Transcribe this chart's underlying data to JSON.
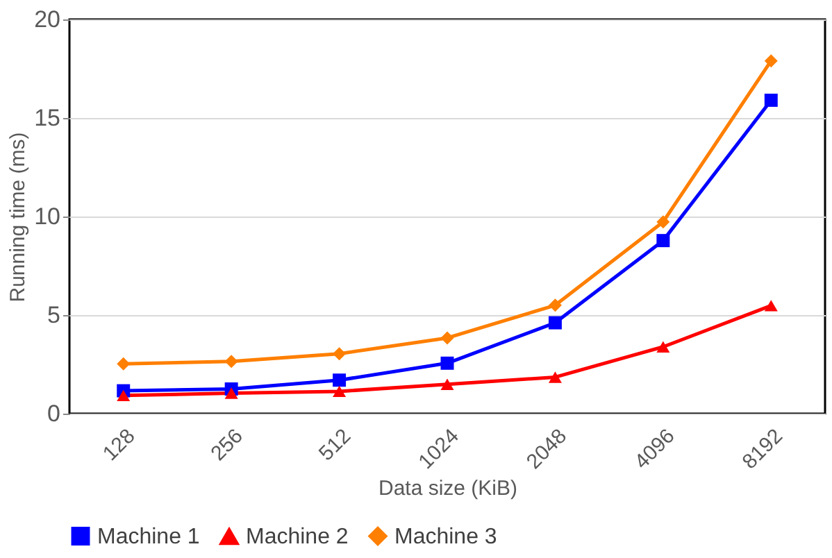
{
  "chart_data": {
    "type": "line",
    "xlabel": "Data size (KiB)",
    "ylabel": "Running time (ms)",
    "categories": [
      "128",
      "256",
      "512",
      "1024",
      "2048",
      "4096",
      "8192"
    ],
    "series": [
      {
        "name": "Machine 1",
        "color": "#0000ff",
        "marker": "square",
        "values": [
          1.16,
          1.25,
          1.7,
          2.56,
          4.61,
          8.78,
          15.9
        ]
      },
      {
        "name": "Machine 2",
        "color": "#ff0000",
        "marker": "triangle",
        "values": [
          0.92,
          1.04,
          1.13,
          1.49,
          1.85,
          3.39,
          5.48
        ]
      },
      {
        "name": "Machine 3",
        "color": "#ff7f00",
        "marker": "diamond",
        "values": [
          2.53,
          2.65,
          3.04,
          3.84,
          5.5,
          9.73,
          17.9
        ]
      }
    ],
    "ylim": [
      0,
      20
    ],
    "yticks": [
      0,
      5,
      10,
      15,
      20
    ],
    "grid": "y",
    "legend": "bottom",
    "line_style": "solid"
  }
}
